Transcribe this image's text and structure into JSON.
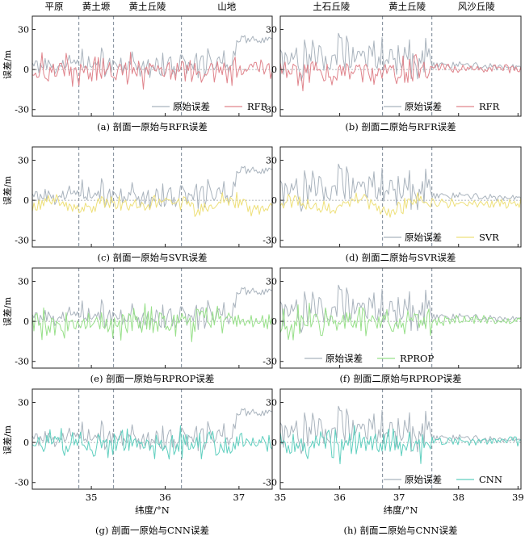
{
  "figure": {
    "ylabel": "误差/m",
    "xlabel": "纬度/°N",
    "series_colors": {
      "original": "#a9b3bd",
      "RFR": "#e0848c",
      "SVR": "#eee07a",
      "RPROP": "#98e08a",
      "CNN": "#5fcfbf"
    },
    "zero_line_color": "#9aa0a6",
    "boundary_line_color": "#8c97a3"
  },
  "profile1": {
    "region_labels": [
      "平原",
      "黄土塬",
      "黄土丘陵",
      "山地"
    ],
    "region_boundaries": [
      34.83,
      35.3,
      36.22
    ],
    "xlim": [
      34.2,
      37.45
    ],
    "xticks": [
      35,
      36,
      37
    ],
    "xtick_labels": [
      "35",
      "36",
      "37"
    ]
  },
  "profile2": {
    "region_labels": [
      "土石丘陵",
      "黄土丘陵",
      "风沙丘陵"
    ],
    "region_boundaries": [
      36.72,
      37.55
    ],
    "xlim": [
      35.0,
      39.05
    ],
    "xticks": [
      35,
      36,
      37,
      38,
      39
    ],
    "xtick_labels": [
      "35",
      "36",
      "37",
      "38",
      "39"
    ]
  },
  "y_axis": {
    "ylim": [
      -35,
      40
    ],
    "yticks": [
      -30,
      0,
      30
    ],
    "ytick_labels": [
      "-30",
      "0",
      "30"
    ]
  },
  "chart_data": [
    {
      "type": "line",
      "id": "a",
      "title": "(a) 剖面一原始与RFR误差",
      "profile": 1,
      "ylim": [
        -35,
        40
      ],
      "legend": [
        "原始误差",
        "RFR"
      ],
      "legend_position": "bottom-right",
      "series": [
        {
          "name": "原始误差",
          "x": [],
          "values": []
        },
        {
          "name": "RFR",
          "x": [],
          "values": []
        }
      ]
    },
    {
      "type": "line",
      "id": "b",
      "title": "(b) 剖面二原始与RFR误差",
      "profile": 2,
      "ylim": [
        -35,
        40
      ],
      "legend": [
        "原始误差",
        "RFR"
      ],
      "legend_position": "bottom-right",
      "series": [
        {
          "name": "原始误差",
          "x": [],
          "values": []
        },
        {
          "name": "RFR",
          "x": [],
          "values": []
        }
      ]
    },
    {
      "type": "line",
      "id": "c",
      "title": "(c) 剖面一原始与SVR误差",
      "profile": 1,
      "ylim": [
        -35,
        40
      ],
      "legend": [],
      "legend_position": "",
      "series": [
        {
          "name": "原始误差",
          "x": [],
          "values": []
        },
        {
          "name": "SVR",
          "x": [],
          "values": []
        }
      ]
    },
    {
      "type": "line",
      "id": "d",
      "title": "(d) 剖面二原始与SVR误差",
      "profile": 2,
      "ylim": [
        -35,
        40
      ],
      "legend": [
        "原始误差",
        "SVR"
      ],
      "legend_position": "bottom-right",
      "series": [
        {
          "name": "原始误差",
          "x": [],
          "values": []
        },
        {
          "name": "SVR",
          "x": [],
          "values": []
        }
      ]
    },
    {
      "type": "line",
      "id": "e",
      "title": "(e) 剖面一原始与RPROP误差",
      "profile": 1,
      "ylim": [
        -35,
        40
      ],
      "legend": [],
      "legend_position": "",
      "series": [
        {
          "name": "原始误差",
          "x": [],
          "values": []
        },
        {
          "name": "RPROP",
          "x": [],
          "values": []
        }
      ]
    },
    {
      "type": "line",
      "id": "f",
      "title": "(f) 剖面二原始与RPROP误差",
      "profile": 2,
      "ylim": [
        -35,
        40
      ],
      "legend": [
        "原始误差",
        "RPROP"
      ],
      "legend_position": "bottom-left",
      "series": [
        {
          "name": "原始误差",
          "x": [],
          "values": []
        },
        {
          "name": "RPROP",
          "x": [],
          "values": []
        }
      ]
    },
    {
      "type": "line",
      "id": "g",
      "title": "(g) 剖面一原始与CNN误差",
      "profile": 1,
      "ylim": [
        -35,
        40
      ],
      "legend": [],
      "legend_position": "",
      "series": [
        {
          "name": "原始误差",
          "x": [],
          "values": []
        },
        {
          "name": "CNN",
          "x": [],
          "values": []
        }
      ]
    },
    {
      "type": "line",
      "id": "h",
      "title": "(h) 剖面二原始与CNN误差",
      "profile": 2,
      "ylim": [
        -35,
        40
      ],
      "legend": [
        "原始误差",
        "CNN"
      ],
      "legend_position": "bottom-right",
      "series": [
        {
          "name": "原始误差",
          "x": [],
          "values": []
        },
        {
          "name": "CNN",
          "x": [],
          "values": []
        }
      ]
    }
  ]
}
